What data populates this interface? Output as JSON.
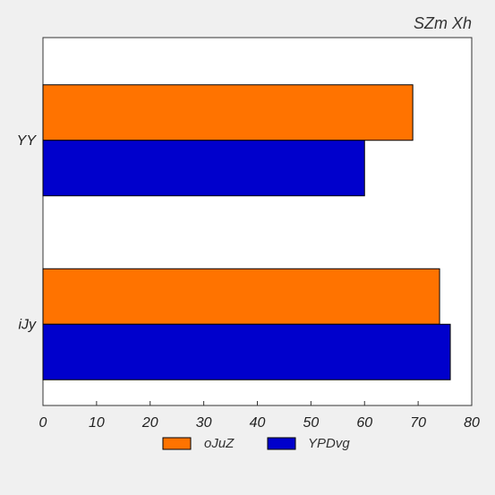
{
  "chart_data": {
    "type": "bar",
    "orientation": "horizontal",
    "title": "SZm Xh",
    "title_position": "top-right",
    "categories": [
      "YY",
      "iJy"
    ],
    "series": [
      {
        "name": "oJuZ",
        "color": "#ff7300",
        "values": [
          69,
          74
        ]
      },
      {
        "name": "YPDvg",
        "color": "#0000cc",
        "values": [
          60,
          76
        ]
      }
    ],
    "xlim": [
      0,
      80
    ],
    "x_ticks": [
      "0",
      "10",
      "20",
      "30",
      "40",
      "50",
      "60",
      "70",
      "80"
    ],
    "xlabel": "",
    "ylabel": "",
    "grid": false,
    "legend_position": "bottom-center",
    "colors": {
      "background": "#f0f0f0",
      "plot_area": "#ffffff",
      "axis": "#333333"
    }
  }
}
